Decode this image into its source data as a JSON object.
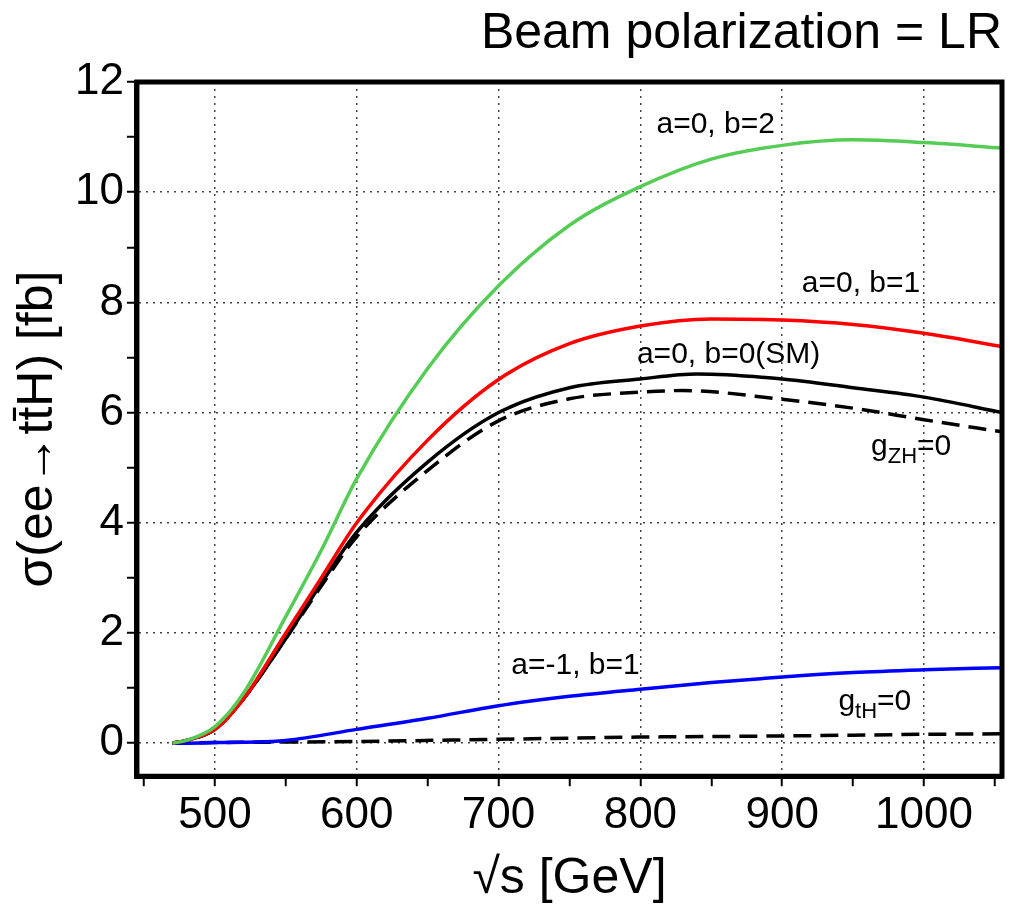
{
  "chart_data": {
    "type": "line",
    "title": "Beam polarization = LR",
    "xlabel": "√s [GeV]",
    "ylabel": "σ(ee→tt̄H) [fb]",
    "xlim": [
      445,
      1055
    ],
    "xticks": [
      {
        "value": 450,
        "label": null
      },
      500,
      {
        "value": 550,
        "label": null
      },
      600,
      {
        "value": 650,
        "label": null
      },
      700,
      {
        "value": 750,
        "label": null
      },
      800,
      {
        "value": 850,
        "label": null
      },
      900,
      {
        "value": 950,
        "label": null
      },
      1000,
      {
        "value": 1050,
        "label": null
      }
    ],
    "ylim": [
      -0.6,
      12
    ],
    "yticks": [
      0,
      {
        "value": 1,
        "label": null
      },
      2,
      {
        "value": 3,
        "label": null
      },
      4,
      {
        "value": 5,
        "label": null
      },
      6,
      {
        "value": 7,
        "label": null
      },
      8,
      {
        "value": 9,
        "label": null
      },
      10,
      {
        "value": 11,
        "label": null
      },
      12
    ],
    "grid": true,
    "legend": false,
    "marker": "none",
    "series": [
      {
        "name": "a=0, b=2",
        "color": "#55cc55",
        "line_style": "solid",
        "x": [
          470,
          480,
          500,
          520,
          550,
          575,
          600,
          650,
          700,
          750,
          800,
          850,
          900,
          950,
          1000,
          1055
        ],
        "values": [
          0,
          0.05,
          0.3,
          0.9,
          2.3,
          3.5,
          4.8,
          6.8,
          8.3,
          9.4,
          10.1,
          10.6,
          10.85,
          10.95,
          10.9,
          10.8
        ]
      },
      {
        "name": "a=0, b=1",
        "color": "#ff0000",
        "line_style": "solid",
        "x": [
          470,
          480,
          500,
          520,
          550,
          575,
          600,
          650,
          700,
          750,
          800,
          850,
          900,
          950,
          1000,
          1055
        ],
        "values": [
          0,
          0.05,
          0.25,
          0.8,
          2.0,
          3.0,
          4.0,
          5.5,
          6.6,
          7.25,
          7.57,
          7.7,
          7.68,
          7.6,
          7.44,
          7.2
        ]
      },
      {
        "name": "a=0, b=0(SM)",
        "color": "#000000",
        "line_style": "solid",
        "x": [
          470,
          480,
          500,
          520,
          550,
          575,
          600,
          650,
          700,
          750,
          800,
          840,
          900,
          950,
          1000,
          1055
        ],
        "values": [
          0,
          0.05,
          0.25,
          0.8,
          1.9,
          2.9,
          3.83,
          5.1,
          6.0,
          6.45,
          6.61,
          6.7,
          6.61,
          6.45,
          6.28,
          6.0
        ]
      },
      {
        "name": "g$_{ZH}$=0",
        "color": "#000000",
        "line_style": "dashed",
        "x": [
          470,
          480,
          500,
          520,
          550,
          575,
          600,
          650,
          700,
          750,
          800,
          830,
          900,
          950,
          1000,
          1055
        ],
        "values": [
          0,
          0.05,
          0.25,
          0.8,
          1.9,
          2.85,
          3.75,
          4.95,
          5.85,
          6.25,
          6.37,
          6.4,
          6.24,
          6.08,
          5.87,
          5.65
        ]
      },
      {
        "name": "a=-1, b=1",
        "color": "#0000ff",
        "line_style": "solid",
        "x": [
          470,
          480,
          500,
          550,
          600,
          650,
          700,
          750,
          800,
          850,
          900,
          950,
          1000,
          1055
        ],
        "values": [
          0,
          0,
          0.01,
          0.05,
          0.25,
          0.45,
          0.68,
          0.85,
          0.98,
          1.1,
          1.2,
          1.28,
          1.33,
          1.37
        ]
      },
      {
        "name": "g$_{tH}$=0",
        "color": "#000000",
        "line_style": "dashed",
        "x": [
          470,
          500,
          600,
          700,
          800,
          900,
          1000,
          1055
        ],
        "values": [
          0,
          0.01,
          0.03,
          0.07,
          0.11,
          0.13,
          0.16,
          0.17
        ]
      }
    ]
  }
}
